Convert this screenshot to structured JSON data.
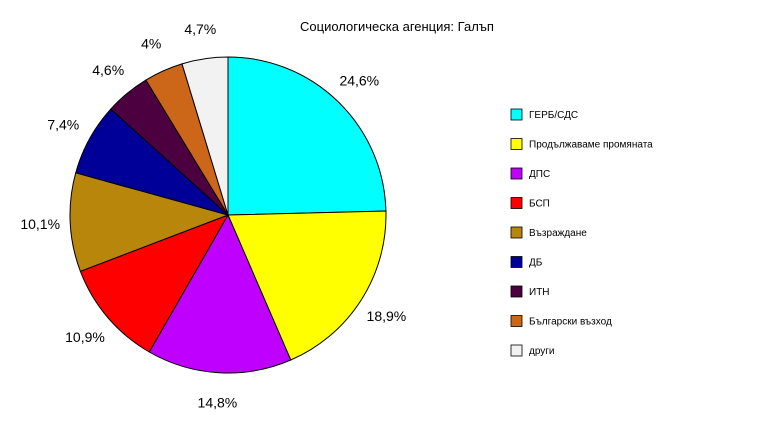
{
  "chart_data": {
    "type": "pie",
    "title": "Социологическа агенция: Галъп",
    "categories": [
      "ГЕРБ/СДС",
      "Продължаваме промяната",
      "ДПС",
      "БСП",
      "Възраждане",
      "ДБ",
      "ИТН",
      "Български възход",
      "други"
    ],
    "values": [
      24.6,
      18.9,
      14.8,
      10.9,
      10.1,
      7.4,
      4.6,
      4,
      4.7
    ],
    "value_labels": [
      "24,6%",
      "18,9%",
      "14,8%",
      "10,9%",
      "10,1%",
      "7,4%",
      "4,6%",
      "4%",
      "4,7%"
    ],
    "colors": [
      "#00ffff",
      "#ffff00",
      "#bf00ff",
      "#ff0000",
      "#b8860b",
      "#000099",
      "#4d0040",
      "#cc6619",
      "#f2f2f2"
    ],
    "start": "top, clockwise",
    "legend_position": "right"
  }
}
